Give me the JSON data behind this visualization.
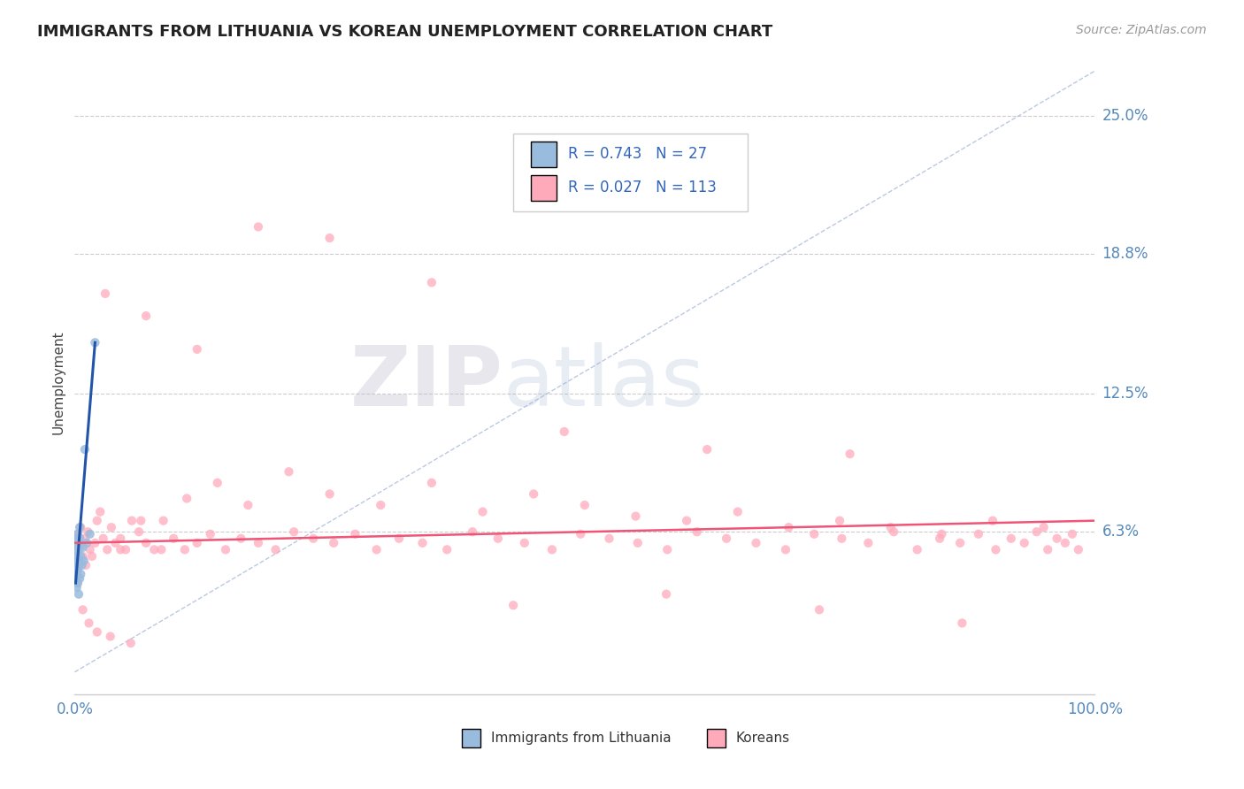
{
  "title": "IMMIGRANTS FROM LITHUANIA VS KOREAN UNEMPLOYMENT CORRELATION CHART",
  "source_text": "Source: ZipAtlas.com",
  "ylabel": "Unemployment",
  "xlim": [
    0,
    1.0
  ],
  "ylim": [
    -0.01,
    0.27
  ],
  "xticks": [
    0.0,
    1.0
  ],
  "xticklabels": [
    "0.0%",
    "100.0%"
  ],
  "ytick_positions": [
    0.063,
    0.125,
    0.188,
    0.25
  ],
  "ytick_labels": [
    "6.3%",
    "12.5%",
    "18.8%",
    "25.0%"
  ],
  "legend_r1": "R = 0.743",
  "legend_n1": "N = 27",
  "legend_r2": "R = 0.027",
  "legend_n2": "N = 113",
  "blue_color": "#99BBDD",
  "pink_color": "#FFAABB",
  "trend_blue_color": "#2255AA",
  "trend_pink_color": "#EE5577",
  "diag_color": "#AABBDD",
  "watermark": "ZIPatlas",
  "background_color": "#FFFFFF",
  "blue_scatter_x": [
    0.001,
    0.001,
    0.001,
    0.002,
    0.002,
    0.002,
    0.002,
    0.003,
    0.003,
    0.003,
    0.003,
    0.004,
    0.004,
    0.004,
    0.004,
    0.005,
    0.005,
    0.005,
    0.006,
    0.006,
    0.007,
    0.008,
    0.009,
    0.01,
    0.012,
    0.015,
    0.02
  ],
  "blue_scatter_y": [
    0.042,
    0.05,
    0.058,
    0.044,
    0.052,
    0.06,
    0.038,
    0.046,
    0.054,
    0.062,
    0.04,
    0.048,
    0.056,
    0.035,
    0.05,
    0.042,
    0.06,
    0.065,
    0.044,
    0.052,
    0.048,
    0.056,
    0.05,
    0.1,
    0.058,
    0.062,
    0.148
  ],
  "pink_scatter_x": [
    0.001,
    0.002,
    0.003,
    0.004,
    0.005,
    0.006,
    0.007,
    0.008,
    0.01,
    0.011,
    0.013,
    0.015,
    0.017,
    0.02,
    0.022,
    0.025,
    0.028,
    0.032,
    0.036,
    0.04,
    0.045,
    0.05,
    0.056,
    0.063,
    0.07,
    0.078,
    0.087,
    0.097,
    0.108,
    0.12,
    0.133,
    0.148,
    0.163,
    0.18,
    0.197,
    0.215,
    0.234,
    0.254,
    0.275,
    0.296,
    0.318,
    0.341,
    0.365,
    0.39,
    0.415,
    0.441,
    0.468,
    0.496,
    0.524,
    0.552,
    0.581,
    0.61,
    0.639,
    0.668,
    0.697,
    0.725,
    0.752,
    0.778,
    0.803,
    0.826,
    0.848,
    0.868,
    0.886,
    0.903,
    0.918,
    0.931,
    0.943,
    0.954,
    0.963,
    0.971,
    0.978,
    0.984,
    0.045,
    0.065,
    0.085,
    0.11,
    0.14,
    0.17,
    0.21,
    0.25,
    0.3,
    0.35,
    0.4,
    0.45,
    0.5,
    0.55,
    0.6,
    0.65,
    0.7,
    0.75,
    0.8,
    0.85,
    0.9,
    0.95,
    0.03,
    0.07,
    0.12,
    0.18,
    0.25,
    0.35,
    0.48,
    0.62,
    0.76,
    0.43,
    0.58,
    0.73,
    0.87,
    0.003,
    0.008,
    0.014,
    0.022,
    0.035,
    0.055
  ],
  "pink_scatter_y": [
    0.06,
    0.055,
    0.062,
    0.058,
    0.05,
    0.065,
    0.057,
    0.052,
    0.06,
    0.048,
    0.063,
    0.055,
    0.052,
    0.058,
    0.068,
    0.072,
    0.06,
    0.055,
    0.065,
    0.058,
    0.06,
    0.055,
    0.068,
    0.063,
    0.058,
    0.055,
    0.068,
    0.06,
    0.055,
    0.058,
    0.062,
    0.055,
    0.06,
    0.058,
    0.055,
    0.063,
    0.06,
    0.058,
    0.062,
    0.055,
    0.06,
    0.058,
    0.055,
    0.063,
    0.06,
    0.058,
    0.055,
    0.062,
    0.06,
    0.058,
    0.055,
    0.063,
    0.06,
    0.058,
    0.055,
    0.062,
    0.06,
    0.058,
    0.063,
    0.055,
    0.06,
    0.058,
    0.062,
    0.055,
    0.06,
    0.058,
    0.063,
    0.055,
    0.06,
    0.058,
    0.062,
    0.055,
    0.055,
    0.068,
    0.055,
    0.078,
    0.085,
    0.075,
    0.09,
    0.08,
    0.075,
    0.085,
    0.072,
    0.08,
    0.075,
    0.07,
    0.068,
    0.072,
    0.065,
    0.068,
    0.065,
    0.062,
    0.068,
    0.065,
    0.17,
    0.16,
    0.145,
    0.2,
    0.195,
    0.175,
    0.108,
    0.1,
    0.098,
    0.03,
    0.035,
    0.028,
    0.022,
    0.04,
    0.028,
    0.022,
    0.018,
    0.016,
    0.013
  ],
  "blue_trend_x0": 0.001,
  "blue_trend_y0": 0.04,
  "blue_trend_x1": 0.02,
  "blue_trend_y1": 0.148,
  "pink_trend_x0": 0.0,
  "pink_trend_y0": 0.058,
  "pink_trend_x1": 1.0,
  "pink_trend_y1": 0.068
}
